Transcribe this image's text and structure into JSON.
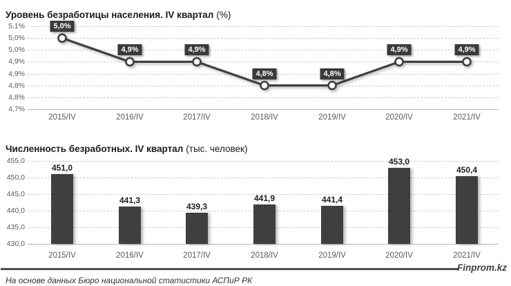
{
  "footer": {
    "source": "На основе данных Бюро национальной статистики АСПиР РК",
    "brand": "Finprom.kz"
  },
  "chart_data": [
    {
      "type": "line",
      "title": "Уровень безработицы населения. IV квартал (%)",
      "title_main": "Уровень безработицы населения. IV квартал",
      "title_suffix": "(%)",
      "categories": [
        "2015/IV",
        "2016/IV",
        "2017/IV",
        "2018/IV",
        "2019/IV",
        "2020/IV",
        "2021/IV"
      ],
      "values": [
        5.0,
        4.9,
        4.9,
        4.8,
        4.8,
        4.9,
        4.9
      ],
      "point_labels": [
        "5,0%",
        "4,9%",
        "4,9%",
        "4,8%",
        "4,8%",
        "4,9%",
        "4,9%"
      ],
      "y_tick_labels": [
        "5,1%",
        "5,0%",
        "5,0%",
        "4,9%",
        "4,9%",
        "4,8%",
        "4,8%",
        "4,7%"
      ],
      "y_axis_top": 5.05,
      "y_axis_step": 0.05,
      "ylim": [
        4.7,
        5.05
      ],
      "xlabel": "",
      "ylabel": "",
      "grid": "horizontal-dashed",
      "legend": "none",
      "colors": {
        "line": "#3f3f3f",
        "marker_fill": "#ffffff",
        "marker_ring": "#3f3f3f",
        "label_bg": "#3a3a3a",
        "label_text": "#ffffff"
      }
    },
    {
      "type": "bar",
      "title": "Численность безработных. IV квартал (тыс. человек)",
      "title_main": "Численность безработных. IV квартал",
      "title_suffix": "(тыс. человек)",
      "categories": [
        "2015/IV",
        "2016/IV",
        "2017/IV",
        "2018/IV",
        "2019/IV",
        "2020/IV",
        "2021/IV"
      ],
      "values": [
        451.0,
        441.3,
        439.3,
        441.9,
        441.4,
        453.0,
        450.4
      ],
      "bar_labels": [
        "451,0",
        "441,3",
        "439,3",
        "441,9",
        "441,4",
        "453,0",
        "450,4"
      ],
      "y_tick_labels": [
        "455,0",
        "450,0",
        "445,0",
        "440,0",
        "435,0",
        "430,0"
      ],
      "ylim": [
        430,
        455
      ],
      "xlabel": "",
      "ylabel": "",
      "grid": "horizontal-dashed",
      "legend": "none",
      "colors": {
        "bar": "#3f3f3f",
        "label_text": "#1f1f1f"
      }
    }
  ]
}
